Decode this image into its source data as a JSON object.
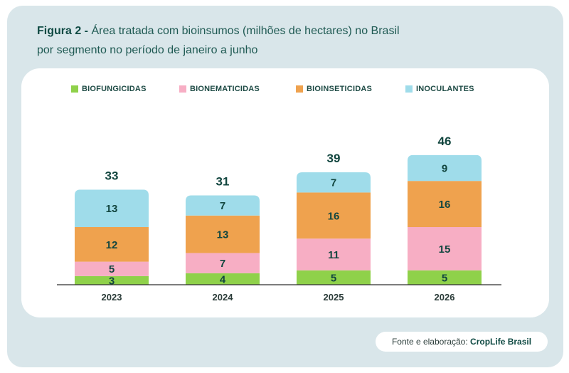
{
  "header": {
    "figure_label": "Figura 2 -",
    "title_line1": "Área tratada com bioinsumos (milhões de hectares) no Brasil",
    "title_line2": "por segmento no período de janeiro a junho"
  },
  "footer": {
    "source_prefix": "Fonte e elaboração:",
    "source_name": "CropLife Brasil"
  },
  "colors": {
    "frame": "#d9e6ea",
    "text_dark": "#0f4a43",
    "axis": "#2f2f2f"
  },
  "chart_data": {
    "type": "bar",
    "stacked": true,
    "categories": [
      "2023",
      "2024",
      "2025",
      "2026"
    ],
    "series": [
      {
        "name": "BIOFUNGICIDAS",
        "color": "#8fd14a",
        "values": [
          3,
          4,
          5,
          5
        ]
      },
      {
        "name": "BIONEMATICIDAS",
        "color": "#f7aec4",
        "values": [
          5,
          7,
          11,
          15
        ]
      },
      {
        "name": "BIOINSETICIDAS",
        "color": "#efa24e",
        "values": [
          12,
          13,
          16,
          16
        ]
      },
      {
        "name": "INOCULANTES",
        "color": "#9fdcea",
        "values": [
          13,
          7,
          7,
          9
        ]
      }
    ],
    "totals": [
      33,
      31,
      39,
      46
    ],
    "legend_position": "top",
    "grid": false
  }
}
